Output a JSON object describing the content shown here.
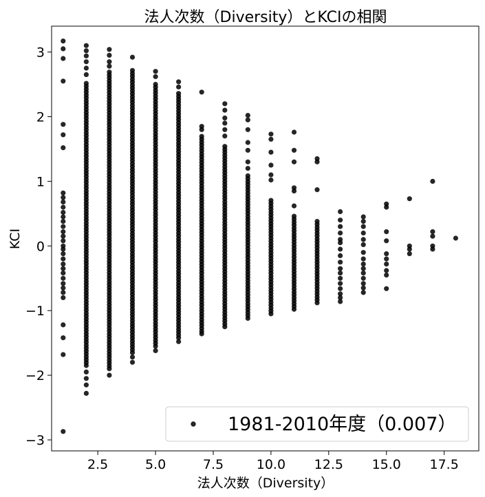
{
  "chart_data": {
    "type": "scatter",
    "title": "法人次数（Diversity）とKCIの相関",
    "xlabel": "法人次数（Diversity）",
    "ylabel": "KCI",
    "xlim": [
      0.5,
      19.0
    ],
    "ylim": [
      -3.17,
      3.4
    ],
    "x_ticks": [
      2.5,
      5.0,
      7.5,
      10.0,
      12.5,
      15.0,
      17.5
    ],
    "x_tick_labels": [
      "2.5",
      "5.0",
      "7.5",
      "10.0",
      "12.5",
      "15.0",
      "17.5"
    ],
    "y_ticks": [
      -3,
      -2,
      -1,
      0,
      1,
      2,
      3
    ],
    "y_tick_labels": [
      "−3",
      "−2",
      "−1",
      "0",
      "1",
      "2",
      "3"
    ],
    "grid": false,
    "legend_position": "lower-right",
    "marker_color": "#000000",
    "series": [
      {
        "name": "1981-2010年度（0.007）",
        "columns": [
          {
            "x": 1,
            "dense": [],
            "points": [
              3.17,
              3.05,
              2.9,
              2.55,
              1.88,
              1.72,
              1.52,
              0.82,
              0.75,
              0.68,
              0.6,
              0.52,
              0.45,
              0.38,
              0.3,
              0.22,
              0.15,
              0.08,
              0.0,
              -0.05,
              -0.12,
              -0.2,
              -0.28,
              -0.35,
              -0.42,
              -0.5,
              -0.58,
              -0.65,
              -0.72,
              -0.8,
              -1.22,
              -1.42,
              -1.68,
              -2.87
            ]
          },
          {
            "x": 2,
            "dense": [
              -1.85,
              2.55
            ],
            "points": [
              3.1,
              3.02,
              2.94,
              2.85,
              2.75,
              2.65,
              -1.95,
              -2.05,
              -2.15,
              -2.28
            ]
          },
          {
            "x": 3,
            "dense": [
              -1.9,
              2.7
            ],
            "points": [
              3.04,
              2.95,
              2.85,
              2.78,
              -2.0
            ]
          },
          {
            "x": 4,
            "dense": [
              -1.65,
              2.75
            ],
            "points": [
              2.92,
              -1.72,
              -1.8
            ]
          },
          {
            "x": 5,
            "dense": [
              -1.55,
              2.52
            ],
            "points": [
              2.7,
              2.62,
              -1.62
            ]
          },
          {
            "x": 6,
            "dense": [
              -1.42,
              2.4
            ],
            "points": [
              2.54,
              2.46,
              -1.48
            ]
          },
          {
            "x": 7,
            "dense": [
              -1.32,
              1.7
            ],
            "points": [
              2.38,
              1.85,
              1.8,
              -1.36
            ]
          },
          {
            "x": 8,
            "dense": [
              -1.25,
              1.55
            ],
            "points": [
              2.2,
              2.1,
              1.98,
              1.9,
              1.8,
              1.7
            ]
          },
          {
            "x": 9,
            "dense": [
              -1.12,
              1.1
            ],
            "points": [
              2.02,
              1.95,
              1.8,
              1.6,
              1.48,
              1.3,
              1.2
            ]
          },
          {
            "x": 10,
            "dense": [
              -1.05,
              0.72
            ],
            "points": [
              1.73,
              1.65,
              1.45,
              1.25,
              1.1,
              1.02
            ]
          },
          {
            "x": 11,
            "dense": [
              -0.98,
              0.5
            ],
            "points": [
              1.76,
              1.48,
              1.3,
              0.9,
              0.85,
              0.62
            ]
          },
          {
            "x": 12,
            "dense": [
              -0.88,
              0.4
            ],
            "points": [
              1.35,
              1.3,
              0.87
            ]
          },
          {
            "x": 13,
            "dense": [],
            "points": [
              0.53,
              0.4,
              0.3,
              0.2,
              0.1,
              0.05,
              -0.05,
              -0.15,
              -0.25,
              -0.35,
              -0.42,
              -0.5,
              -0.58,
              -0.66,
              -0.74,
              -0.8,
              -0.86
            ]
          },
          {
            "x": 14,
            "dense": [],
            "points": [
              0.45,
              0.38,
              0.3,
              0.2,
              0.1,
              0.02,
              -0.1,
              -0.2,
              -0.28,
              -0.35,
              -0.42,
              -0.5,
              -0.58,
              -0.65,
              -0.72
            ]
          },
          {
            "x": 15,
            "dense": [],
            "points": [
              0.65,
              0.6,
              0.22,
              0.08,
              -0.12,
              -0.2,
              -0.28,
              -0.38,
              -0.45,
              -0.66
            ]
          },
          {
            "x": 16,
            "dense": [],
            "points": [
              0.73,
              0.0,
              -0.05,
              -0.12
            ]
          },
          {
            "x": 17,
            "dense": [],
            "points": [
              1.0,
              0.22,
              0.15,
              0.0,
              -0.05
            ]
          },
          {
            "x": 18,
            "dense": [],
            "points": [
              0.12
            ]
          }
        ]
      }
    ]
  }
}
